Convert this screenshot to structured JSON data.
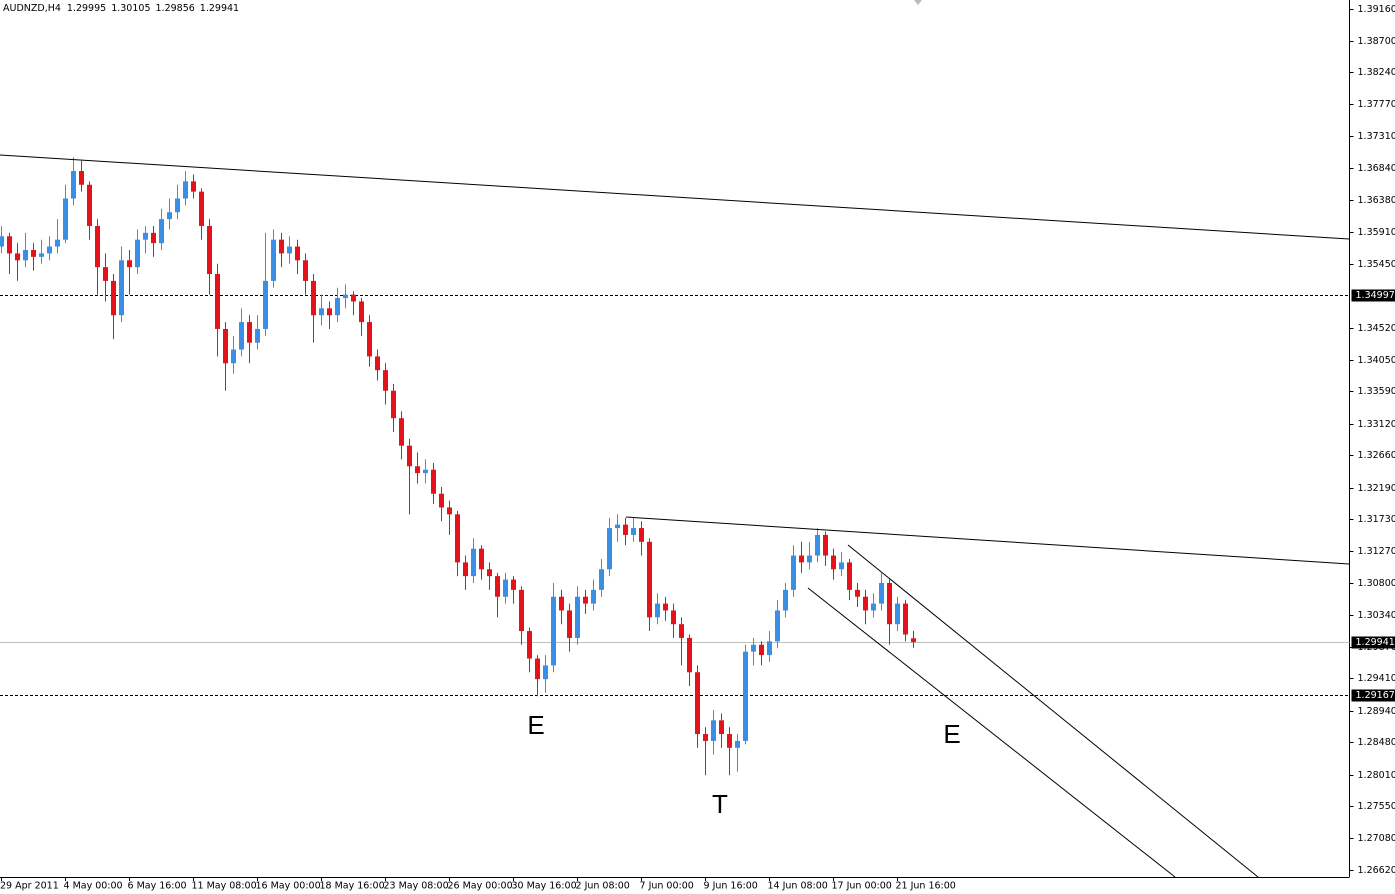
{
  "chart_data": {
    "type": "candlestick",
    "symbol": "AUDNZD,H4",
    "header_ohlc": [
      1.29995,
      1.30105,
      1.29856,
      1.29941
    ],
    "bull_color": "#3a8ee6",
    "bear_color": "#e3121b",
    "ylim": [
      1.26518,
      1.39291
    ],
    "yticks": [
      {
        "value": 1.3916,
        "label": "1.39160"
      },
      {
        "value": 1.387,
        "label": "1.38700"
      },
      {
        "value": 1.3824,
        "label": "1.38240"
      },
      {
        "value": 1.3777,
        "label": "1.37770"
      },
      {
        "value": 1.3731,
        "label": "1.37310"
      },
      {
        "value": 1.3684,
        "label": "1.36840"
      },
      {
        "value": 1.3638,
        "label": "1.36380"
      },
      {
        "value": 1.3591,
        "label": "1.35910"
      },
      {
        "value": 1.3545,
        "label": "1.35450"
      },
      {
        "value": 1.3452,
        "label": "1.34520"
      },
      {
        "value": 1.3405,
        "label": "1.34050"
      },
      {
        "value": 1.3359,
        "label": "1.33590"
      },
      {
        "value": 1.3312,
        "label": "1.33120"
      },
      {
        "value": 1.3266,
        "label": "1.32660"
      },
      {
        "value": 1.3219,
        "label": "1.32190"
      },
      {
        "value": 1.3173,
        "label": "1.31730"
      },
      {
        "value": 1.3127,
        "label": "1.31270"
      },
      {
        "value": 1.308,
        "label": "1.30800"
      },
      {
        "value": 1.3034,
        "label": "1.30340"
      },
      {
        "value": 1.2987,
        "label": "1.29870"
      },
      {
        "value": 1.2941,
        "label": "1.29410"
      },
      {
        "value": 1.2894,
        "label": "1.28940"
      },
      {
        "value": 1.2848,
        "label": "1.28480"
      },
      {
        "value": 1.2801,
        "label": "1.28010"
      },
      {
        "value": 1.2755,
        "label": "1.27550"
      },
      {
        "value": 1.2708,
        "label": "1.27080"
      },
      {
        "value": 1.2662,
        "label": "1.26620"
      }
    ],
    "levels": [
      1.34997,
      1.29167
    ],
    "bid": 1.29941,
    "annotations": [
      "E",
      "T",
      "E"
    ],
    "categories": [
      "29 Apr 2011",
      null,
      null,
      null,
      null,
      null,
      null,
      null,
      "4 May 00:00",
      null,
      null,
      null,
      null,
      null,
      null,
      null,
      "6 May 16:00",
      null,
      null,
      null,
      null,
      null,
      null,
      null,
      "11 May 08:00",
      null,
      null,
      null,
      null,
      null,
      null,
      null,
      "16 May 00:00",
      null,
      null,
      null,
      null,
      null,
      null,
      null,
      "18 May 16:00",
      null,
      null,
      null,
      null,
      null,
      null,
      null,
      "23 May 08:00",
      null,
      null,
      null,
      null,
      null,
      null,
      null,
      "26 May 00:00",
      null,
      null,
      null,
      null,
      null,
      null,
      null,
      "30 May 16:00",
      null,
      null,
      null,
      null,
      null,
      null,
      null,
      "2 Jun 08:00",
      null,
      null,
      null,
      null,
      null,
      null,
      null,
      "7 Jun 00:00",
      null,
      null,
      null,
      null,
      null,
      null,
      null,
      "9 Jun 16:00",
      null,
      null,
      null,
      null,
      null,
      null,
      null,
      "14 Jun 08:00",
      null,
      null,
      null,
      null,
      null,
      null,
      null,
      "17 Jun 00:00",
      null,
      null,
      null,
      null,
      null,
      null,
      null,
      "21 Jun 16:00",
      null,
      null
    ],
    "candles": [
      [
        1.357,
        1.36,
        1.356,
        1.3585
      ],
      [
        1.3585,
        1.359,
        1.353,
        1.356
      ],
      [
        1.356,
        1.3575,
        1.352,
        1.355
      ],
      [
        1.355,
        1.359,
        1.354,
        1.3565
      ],
      [
        1.3565,
        1.3575,
        1.3535,
        1.3555
      ],
      [
        1.3555,
        1.358,
        1.3545,
        1.356
      ],
      [
        1.356,
        1.3585,
        1.355,
        1.357
      ],
      [
        1.357,
        1.361,
        1.356,
        1.358
      ],
      [
        1.358,
        1.366,
        1.3575,
        1.364
      ],
      [
        1.364,
        1.37,
        1.363,
        1.368
      ],
      [
        1.368,
        1.3695,
        1.365,
        1.366
      ],
      [
        1.366,
        1.3665,
        1.358,
        1.36
      ],
      [
        1.36,
        1.361,
        1.35,
        1.354
      ],
      [
        1.354,
        1.356,
        1.349,
        1.352
      ],
      [
        1.352,
        1.353,
        1.3435,
        1.347
      ],
      [
        1.347,
        1.357,
        1.346,
        1.355
      ],
      [
        1.355,
        1.3565,
        1.35,
        1.354
      ],
      [
        1.354,
        1.3595,
        1.353,
        1.358
      ],
      [
        1.358,
        1.36,
        1.356,
        1.359
      ],
      [
        1.359,
        1.36,
        1.3555,
        1.3575
      ],
      [
        1.3575,
        1.3625,
        1.3565,
        1.361
      ],
      [
        1.361,
        1.364,
        1.3595,
        1.362
      ],
      [
        1.362,
        1.366,
        1.361,
        1.364
      ],
      [
        1.364,
        1.368,
        1.363,
        1.3665
      ],
      [
        1.3665,
        1.3675,
        1.364,
        1.365
      ],
      [
        1.365,
        1.3655,
        1.358,
        1.36
      ],
      [
        1.36,
        1.361,
        1.35,
        1.353
      ],
      [
        1.353,
        1.3545,
        1.341,
        1.345
      ],
      [
        1.345,
        1.346,
        1.336,
        1.34
      ],
      [
        1.34,
        1.344,
        1.3385,
        1.342
      ],
      [
        1.342,
        1.348,
        1.341,
        1.346
      ],
      [
        1.346,
        1.347,
        1.34,
        1.343
      ],
      [
        1.343,
        1.347,
        1.342,
        1.345
      ],
      [
        1.345,
        1.359,
        1.344,
        1.352
      ],
      [
        1.352,
        1.3595,
        1.351,
        1.358
      ],
      [
        1.358,
        1.359,
        1.354,
        1.356
      ],
      [
        1.356,
        1.3585,
        1.3545,
        1.357
      ],
      [
        1.357,
        1.358,
        1.353,
        1.355
      ],
      [
        1.355,
        1.356,
        1.35,
        1.352
      ],
      [
        1.352,
        1.353,
        1.343,
        1.347
      ],
      [
        1.347,
        1.35,
        1.3455,
        1.348
      ],
      [
        1.348,
        1.349,
        1.345,
        1.347
      ],
      [
        1.347,
        1.351,
        1.346,
        1.3495
      ],
      [
        1.3495,
        1.3515,
        1.348,
        1.35
      ],
      [
        1.35,
        1.3505,
        1.347,
        1.349
      ],
      [
        1.349,
        1.3495,
        1.344,
        1.346
      ],
      [
        1.346,
        1.347,
        1.3395,
        1.341
      ],
      [
        1.341,
        1.342,
        1.3375,
        1.339
      ],
      [
        1.339,
        1.34,
        1.334,
        1.336
      ],
      [
        1.336,
        1.337,
        1.33,
        1.332
      ],
      [
        1.332,
        1.333,
        1.326,
        1.328
      ],
      [
        1.328,
        1.329,
        1.318,
        1.325
      ],
      [
        1.325,
        1.327,
        1.3225,
        1.324
      ],
      [
        1.324,
        1.326,
        1.3225,
        1.3245
      ],
      [
        1.3245,
        1.3255,
        1.3195,
        1.321
      ],
      [
        1.321,
        1.322,
        1.317,
        1.319
      ],
      [
        1.319,
        1.32,
        1.315,
        1.318
      ],
      [
        1.318,
        1.3185,
        1.309,
        1.311
      ],
      [
        1.311,
        1.312,
        1.307,
        1.309
      ],
      [
        1.309,
        1.3145,
        1.308,
        1.313
      ],
      [
        1.313,
        1.3135,
        1.3085,
        1.31
      ],
      [
        1.31,
        1.311,
        1.307,
        1.309
      ],
      [
        1.309,
        1.3095,
        1.303,
        1.306
      ],
      [
        1.306,
        1.3095,
        1.305,
        1.3085
      ],
      [
        1.3085,
        1.309,
        1.305,
        1.307
      ],
      [
        1.307,
        1.3075,
        1.299,
        1.301
      ],
      [
        1.301,
        1.3015,
        1.295,
        1.297
      ],
      [
        1.297,
        1.2975,
        1.2915,
        1.294
      ],
      [
        1.294,
        1.2975,
        1.292,
        1.296
      ],
      [
        1.296,
        1.308,
        1.295,
        1.306
      ],
      [
        1.306,
        1.307,
        1.302,
        1.304
      ],
      [
        1.304,
        1.305,
        1.298,
        1.3
      ],
      [
        1.3,
        1.3075,
        1.299,
        1.306
      ],
      [
        1.306,
        1.307,
        1.3035,
        1.305
      ],
      [
        1.305,
        1.3085,
        1.304,
        1.307
      ],
      [
        1.307,
        1.3115,
        1.306,
        1.31
      ],
      [
        1.31,
        1.3175,
        1.309,
        1.316
      ],
      [
        1.316,
        1.318,
        1.314,
        1.3165
      ],
      [
        1.3165,
        1.3175,
        1.3135,
        1.315
      ],
      [
        1.315,
        1.3175,
        1.314,
        1.316
      ],
      [
        1.316,
        1.317,
        1.312,
        1.314
      ],
      [
        1.314,
        1.3145,
        1.301,
        1.303
      ],
      [
        1.303,
        1.3065,
        1.302,
        1.305
      ],
      [
        1.305,
        1.306,
        1.3025,
        1.304
      ],
      [
        1.304,
        1.305,
        1.3,
        1.302
      ],
      [
        1.302,
        1.303,
        1.296,
        1.3
      ],
      [
        1.3,
        1.3005,
        1.293,
        1.295
      ],
      [
        1.295,
        1.296,
        1.284,
        1.286
      ],
      [
        1.286,
        1.287,
        1.28,
        1.285
      ],
      [
        1.285,
        1.2895,
        1.283,
        1.288
      ],
      [
        1.288,
        1.289,
        1.284,
        1.286
      ],
      [
        1.286,
        1.287,
        1.28,
        1.284
      ],
      [
        1.284,
        1.286,
        1.2805,
        1.285
      ],
      [
        1.285,
        1.299,
        1.2845,
        1.298
      ],
      [
        1.298,
        1.3,
        1.296,
        1.299
      ],
      [
        1.299,
        1.2995,
        1.296,
        1.2975
      ],
      [
        1.2975,
        1.301,
        1.2965,
        1.2995
      ],
      [
        1.2995,
        1.3055,
        1.2985,
        1.304
      ],
      [
        1.304,
        1.308,
        1.303,
        1.307
      ],
      [
        1.307,
        1.3135,
        1.306,
        1.312
      ],
      [
        1.312,
        1.314,
        1.3095,
        1.311
      ],
      [
        1.311,
        1.314,
        1.31,
        1.312
      ],
      [
        1.312,
        1.316,
        1.311,
        1.315
      ],
      [
        1.315,
        1.3155,
        1.3105,
        1.312
      ],
      [
        1.312,
        1.313,
        1.3085,
        1.31
      ],
      [
        1.31,
        1.3125,
        1.309,
        1.311
      ],
      [
        1.311,
        1.3115,
        1.3055,
        1.307
      ],
      [
        1.307,
        1.308,
        1.3045,
        1.306
      ],
      [
        1.306,
        1.307,
        1.302,
        1.304
      ],
      [
        1.304,
        1.3065,
        1.303,
        1.305
      ],
      [
        1.305,
        1.3095,
        1.304,
        1.308
      ],
      [
        1.308,
        1.3085,
        1.299,
        1.302
      ],
      [
        1.302,
        1.306,
        1.301,
        1.305
      ],
      [
        1.305,
        1.3055,
        1.2995,
        1.3005
      ],
      [
        1.29995,
        1.30105,
        1.29856,
        1.29941
      ]
    ]
  }
}
